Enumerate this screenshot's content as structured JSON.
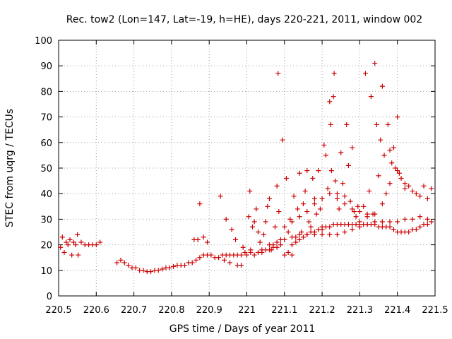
{
  "chart_data": {
    "type": "scatter",
    "title": "Rec. tow2 (Lon=147, Lat=-19, h=HE), days 220-221, 2011, window 002",
    "xlabel": "GPS time / Days of year 2011",
    "ylabel": "STEC from uqrg / TECUs",
    "xlim": [
      220.5,
      221.5
    ],
    "ylim": [
      0,
      100
    ],
    "xticks": [
      "220.5",
      "220.6",
      "220.7",
      "220.8",
      "220.9",
      "221",
      "221.1",
      "221.2",
      "221.3",
      "221.4",
      "221.5"
    ],
    "yticks": [
      "0",
      "10",
      "20",
      "30",
      "40",
      "50",
      "60",
      "70",
      "80",
      "90",
      "100"
    ],
    "grid": true,
    "marker": "plus",
    "color": "#cc0000",
    "points": [
      [
        220.505,
        19
      ],
      [
        220.51,
        23
      ],
      [
        220.515,
        17
      ],
      [
        220.52,
        21
      ],
      [
        220.525,
        20
      ],
      [
        220.53,
        22
      ],
      [
        220.535,
        16
      ],
      [
        220.54,
        21
      ],
      [
        220.545,
        20
      ],
      [
        220.55,
        24
      ],
      [
        220.552,
        16
      ],
      [
        220.56,
        21
      ],
      [
        220.57,
        20
      ],
      [
        220.58,
        20
      ],
      [
        220.59,
        20
      ],
      [
        220.6,
        20
      ],
      [
        220.61,
        21
      ],
      [
        220.655,
        13
      ],
      [
        220.665,
        14
      ],
      [
        220.675,
        13
      ],
      [
        220.685,
        12
      ],
      [
        220.695,
        11
      ],
      [
        220.705,
        11
      ],
      [
        220.715,
        10
      ],
      [
        220.725,
        10
      ],
      [
        220.735,
        9.5
      ],
      [
        220.745,
        9.5
      ],
      [
        220.755,
        10
      ],
      [
        220.765,
        10
      ],
      [
        220.775,
        10.5
      ],
      [
        220.785,
        11
      ],
      [
        220.795,
        11
      ],
      [
        220.805,
        11.5
      ],
      [
        220.815,
        12
      ],
      [
        220.825,
        12
      ],
      [
        220.835,
        12
      ],
      [
        220.845,
        13
      ],
      [
        220.855,
        13
      ],
      [
        220.865,
        14
      ],
      [
        220.875,
        15
      ],
      [
        220.885,
        16
      ],
      [
        220.895,
        16
      ],
      [
        220.905,
        16
      ],
      [
        220.915,
        15
      ],
      [
        220.925,
        15
      ],
      [
        220.935,
        16
      ],
      [
        220.945,
        16
      ],
      [
        220.955,
        16
      ],
      [
        220.965,
        16
      ],
      [
        220.975,
        16
      ],
      [
        220.985,
        16
      ],
      [
        220.995,
        17
      ],
      [
        220.86,
        22
      ],
      [
        220.87,
        22
      ],
      [
        220.875,
        36
      ],
      [
        220.885,
        23
      ],
      [
        220.895,
        21
      ],
      [
        220.93,
        39
      ],
      [
        220.94,
        14
      ],
      [
        220.945,
        30
      ],
      [
        220.955,
        13
      ],
      [
        220.96,
        26
      ],
      [
        220.97,
        22
      ],
      [
        220.975,
        12
      ],
      [
        220.985,
        12
      ],
      [
        220.99,
        19
      ],
      [
        221.005,
        31
      ],
      [
        221.008,
        41
      ],
      [
        221.01,
        18
      ],
      [
        221.015,
        27
      ],
      [
        221.02,
        29
      ],
      [
        221.025,
        34
      ],
      [
        221.03,
        25
      ],
      [
        221.035,
        21
      ],
      [
        221.04,
        18
      ],
      [
        221.045,
        24
      ],
      [
        221.05,
        29
      ],
      [
        221.055,
        35
      ],
      [
        221.06,
        38
      ],
      [
        221.065,
        18
      ],
      [
        221.07,
        20
      ],
      [
        221.075,
        27
      ],
      [
        221.08,
        43
      ],
      [
        221.083,
        87
      ],
      [
        221.085,
        33
      ],
      [
        221.09,
        22
      ],
      [
        221.095,
        61
      ],
      [
        221.1,
        27
      ],
      [
        221.105,
        46
      ],
      [
        221.11,
        25
      ],
      [
        221.115,
        30
      ],
      [
        221.12,
        16
      ],
      [
        221.125,
        39
      ],
      [
        221.13,
        23
      ],
      [
        221.135,
        34
      ],
      [
        221.14,
        48
      ],
      [
        221.145,
        25
      ],
      [
        221.15,
        36
      ],
      [
        221.155,
        41
      ],
      [
        221.16,
        49
      ],
      [
        221.165,
        29
      ],
      [
        221.17,
        27
      ],
      [
        221.175,
        46
      ],
      [
        221.18,
        38
      ],
      [
        221.185,
        32
      ],
      [
        221.19,
        49
      ],
      [
        221.195,
        34
      ],
      [
        221.2,
        27
      ],
      [
        221.205,
        59
      ],
      [
        221.21,
        55
      ],
      [
        221.215,
        42
      ],
      [
        221.22,
        76
      ],
      [
        221.223,
        67
      ],
      [
        221.225,
        49
      ],
      [
        221.23,
        78
      ],
      [
        221.232,
        87
      ],
      [
        221.235,
        45
      ],
      [
        221.24,
        40
      ],
      [
        221.245,
        34
      ],
      [
        221.25,
        56
      ],
      [
        221.255,
        44
      ],
      [
        221.26,
        39
      ],
      [
        221.265,
        67
      ],
      [
        221.27,
        51
      ],
      [
        221.275,
        37
      ],
      [
        221.28,
        58
      ],
      [
        221.285,
        33
      ],
      [
        221.29,
        31
      ],
      [
        221.295,
        35
      ],
      [
        221.3,
        29
      ],
      [
        221.31,
        35
      ],
      [
        221.315,
        87
      ],
      [
        221.32,
        31
      ],
      [
        221.325,
        41
      ],
      [
        221.33,
        78
      ],
      [
        221.335,
        32
      ],
      [
        221.34,
        91
      ],
      [
        221.345,
        67
      ],
      [
        221.35,
        47
      ],
      [
        221.355,
        61
      ],
      [
        221.36,
        82
      ],
      [
        221.365,
        55
      ],
      [
        221.37,
        40
      ],
      [
        221.375,
        67
      ],
      [
        221.38,
        57
      ],
      [
        221.385,
        52
      ],
      [
        221.39,
        58
      ],
      [
        221.395,
        50
      ],
      [
        221.4,
        70
      ],
      [
        221.405,
        48
      ],
      [
        221.41,
        46
      ],
      [
        221.42,
        44
      ],
      [
        221.43,
        43
      ],
      [
        221.44,
        41
      ],
      [
        221.45,
        40
      ],
      [
        221.46,
        39
      ],
      [
        221.47,
        43
      ],
      [
        221.48,
        38
      ],
      [
        221.49,
        42
      ],
      [
        221.0,
        16
      ],
      [
        221.01,
        17
      ],
      [
        221.02,
        16
      ],
      [
        221.03,
        17
      ],
      [
        221.04,
        17
      ],
      [
        221.05,
        18
      ],
      [
        221.06,
        18
      ],
      [
        221.07,
        19
      ],
      [
        221.08,
        19
      ],
      [
        221.09,
        20
      ],
      [
        221.1,
        16
      ],
      [
        221.11,
        17
      ],
      [
        221.12,
        20
      ],
      [
        221.13,
        21
      ],
      [
        221.14,
        22
      ],
      [
        221.15,
        23
      ],
      [
        221.16,
        24
      ],
      [
        221.17,
        25
      ],
      [
        221.18,
        25
      ],
      [
        221.19,
        26
      ],
      [
        221.2,
        26
      ],
      [
        221.21,
        27
      ],
      [
        221.22,
        27
      ],
      [
        221.23,
        28
      ],
      [
        221.24,
        28
      ],
      [
        221.25,
        28
      ],
      [
        221.26,
        28
      ],
      [
        221.27,
        28
      ],
      [
        221.28,
        28
      ],
      [
        221.29,
        28
      ],
      [
        221.3,
        28
      ],
      [
        221.31,
        28
      ],
      [
        221.32,
        28
      ],
      [
        221.33,
        28
      ],
      [
        221.34,
        28
      ],
      [
        221.35,
        27
      ],
      [
        221.36,
        27
      ],
      [
        221.37,
        27
      ],
      [
        221.38,
        27
      ],
      [
        221.39,
        26
      ],
      [
        221.4,
        25
      ],
      [
        221.41,
        25
      ],
      [
        221.42,
        25
      ],
      [
        221.43,
        25
      ],
      [
        221.44,
        26
      ],
      [
        221.45,
        26
      ],
      [
        221.46,
        27
      ],
      [
        221.47,
        28
      ],
      [
        221.48,
        28
      ],
      [
        221.49,
        29
      ],
      [
        221.06,
        20
      ],
      [
        221.08,
        21
      ],
      [
        221.1,
        22
      ],
      [
        221.12,
        23
      ],
      [
        221.14,
        24
      ],
      [
        221.16,
        24
      ],
      [
        221.18,
        24
      ],
      [
        221.2,
        24
      ],
      [
        221.22,
        24
      ],
      [
        221.24,
        24
      ],
      [
        221.26,
        25
      ],
      [
        221.28,
        26
      ],
      [
        221.3,
        27
      ],
      [
        221.32,
        28
      ],
      [
        221.34,
        29
      ],
      [
        221.36,
        29
      ],
      [
        221.38,
        29
      ],
      [
        221.4,
        29
      ],
      [
        221.42,
        30
      ],
      [
        221.44,
        30
      ],
      [
        221.46,
        31
      ],
      [
        221.48,
        30
      ],
      [
        221.12,
        29
      ],
      [
        221.14,
        31
      ],
      [
        221.16,
        33
      ],
      [
        221.18,
        36
      ],
      [
        221.2,
        38
      ],
      [
        221.22,
        40
      ],
      [
        221.24,
        38
      ],
      [
        221.26,
        36
      ],
      [
        221.28,
        34
      ],
      [
        221.3,
        33
      ],
      [
        221.32,
        32
      ],
      [
        221.34,
        32
      ],
      [
        221.36,
        36
      ],
      [
        221.38,
        44
      ],
      [
        221.4,
        49
      ],
      [
        221.42,
        42
      ]
    ]
  }
}
